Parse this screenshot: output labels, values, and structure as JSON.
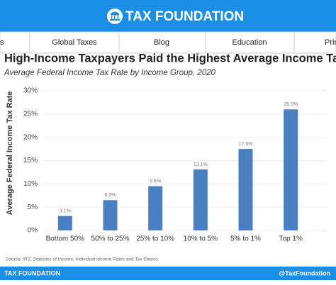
{
  "header": {
    "logo_text": "TAX FOUNDATION"
  },
  "nav": {
    "items": [
      "s",
      "Global Taxes",
      "Blog",
      "Education",
      "Prin"
    ]
  },
  "chart_data": {
    "type": "bar",
    "title": "High-Income Taxpayers Paid the Highest Average Income Tax Rates",
    "subtitle": "Average Federal Income Tax Rate by Income Group, 2020",
    "y_label": "Average Federal Income Tax Rate",
    "categories": [
      "Bottom 50%",
      "50% to 25%",
      "25% to 10%",
      "10% to 5%",
      "5% to 1%",
      "Top 1%"
    ],
    "values": [
      3.1,
      6.5,
      9.5,
      13.1,
      17.5,
      26.0
    ],
    "value_labels": [
      "3.1%",
      "6.5%",
      "9.5%",
      "13.1%",
      "17.5%",
      "26.0%"
    ],
    "color": "#4a7fc1",
    "ylim": [
      0,
      30
    ],
    "yticks": [
      {
        "value": 0,
        "label": "0%"
      },
      {
        "value": 5,
        "label": "5%"
      },
      {
        "value": 10,
        "label": "10%"
      },
      {
        "value": 15,
        "label": "15%"
      },
      {
        "value": 20,
        "label": "20%"
      },
      {
        "value": 25,
        "label": "25%"
      },
      {
        "value": 30,
        "label": "30%"
      }
    ],
    "grid": true,
    "source": "Source: IRS, Statistics of Income, Individual Income Rates and Tax Shares."
  },
  "footer": {
    "left": "TAX FOUNDATION",
    "right": "@TaxFoundation"
  }
}
